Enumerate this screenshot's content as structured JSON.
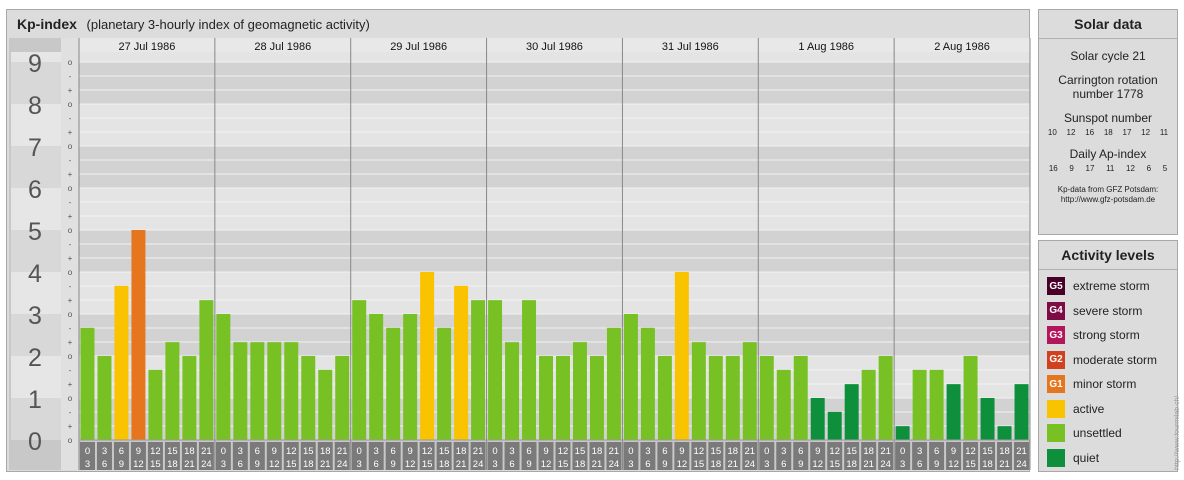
{
  "header": {
    "title": "Kp-index",
    "subtitle": "(planetary 3-hourly index of geomagnetic activity)"
  },
  "chart_data": {
    "type": "bar",
    "title": "Kp-index",
    "subtitle": "(planetary 3-hourly index of geomagnetic activity)",
    "ylim": [
      0,
      9
    ],
    "y_major_ticks": [
      "0",
      "1",
      "2",
      "3",
      "4",
      "5",
      "6",
      "7",
      "8",
      "9"
    ],
    "y_minor_ticks": [
      "-",
      "o",
      "+"
    ],
    "days": [
      "27 Jul 1986",
      "28 Jul 1986",
      "29 Jul 1986",
      "30 Jul 1986",
      "31 Jul 1986",
      "1 Aug 1986",
      "2 Aug 1986"
    ],
    "interval_top": [
      "0",
      "3",
      "6",
      "9",
      "12",
      "15",
      "18",
      "21"
    ],
    "interval_bottom": [
      "3",
      "6",
      "9",
      "12",
      "15",
      "18",
      "21",
      "24"
    ],
    "values": [
      [
        2.67,
        2.0,
        3.67,
        5.0,
        1.67,
        2.33,
        2.0,
        3.33
      ],
      [
        3.0,
        2.33,
        2.33,
        2.33,
        2.33,
        2.0,
        1.67,
        2.0
      ],
      [
        3.33,
        3.0,
        2.67,
        3.0,
        4.0,
        2.67,
        3.67,
        3.33
      ],
      [
        3.33,
        2.33,
        3.33,
        2.0,
        2.0,
        2.33,
        2.0,
        2.67
      ],
      [
        3.0,
        2.67,
        2.0,
        4.0,
        2.33,
        2.0,
        2.0,
        2.33
      ],
      [
        2.0,
        1.67,
        2.0,
        1.0,
        0.67,
        1.33,
        1.67,
        2.0
      ],
      [
        0.33,
        1.67,
        1.67,
        1.33,
        2.0,
        1.0,
        0.33,
        1.33
      ]
    ],
    "colors": {
      "quiet": "#0e8f3c",
      "unsettled": "#77c124",
      "active": "#f9c300",
      "G1": "#e6761e",
      "G2": "#d2411f",
      "G3": "#b5155a",
      "G4": "#7e0b45",
      "G5": "#4a0026"
    },
    "grid": true
  },
  "solar_data": {
    "title": "Solar data",
    "cycle": "Solar cycle 21",
    "carrington": "Carrington rotation number 1778",
    "sunspot_label": "Sunspot number",
    "sunspot_values": [
      "10",
      "12",
      "16",
      "18",
      "17",
      "12",
      "11"
    ],
    "ap_label": "Daily Ap-index",
    "ap_values": [
      "16",
      "9",
      "17",
      "11",
      "12",
      "6",
      "5"
    ],
    "credit_line1": "Kp-data from GFZ Potsdam:",
    "credit_line2": "http://www.gfz-potsdam.de"
  },
  "activity_levels": {
    "title": "Activity levels",
    "items": [
      {
        "badge": "G5",
        "label": "extreme storm",
        "color": "#4a0026"
      },
      {
        "badge": "G4",
        "label": "severe storm",
        "color": "#7e0b45"
      },
      {
        "badge": "G3",
        "label": "strong storm",
        "color": "#b5155a"
      },
      {
        "badge": "G2",
        "label": "moderate storm",
        "color": "#d2411f"
      },
      {
        "badge": "G1",
        "label": "minor storm",
        "color": "#e6761e"
      },
      {
        "badge": "",
        "label": "active",
        "color": "#f9c300"
      },
      {
        "badge": "",
        "label": "unsettled",
        "color": "#77c124"
      },
      {
        "badge": "",
        "label": "quiet",
        "color": "#0e8f3c"
      }
    ]
  },
  "side_credit": "http://www.fourmilab.ch/"
}
